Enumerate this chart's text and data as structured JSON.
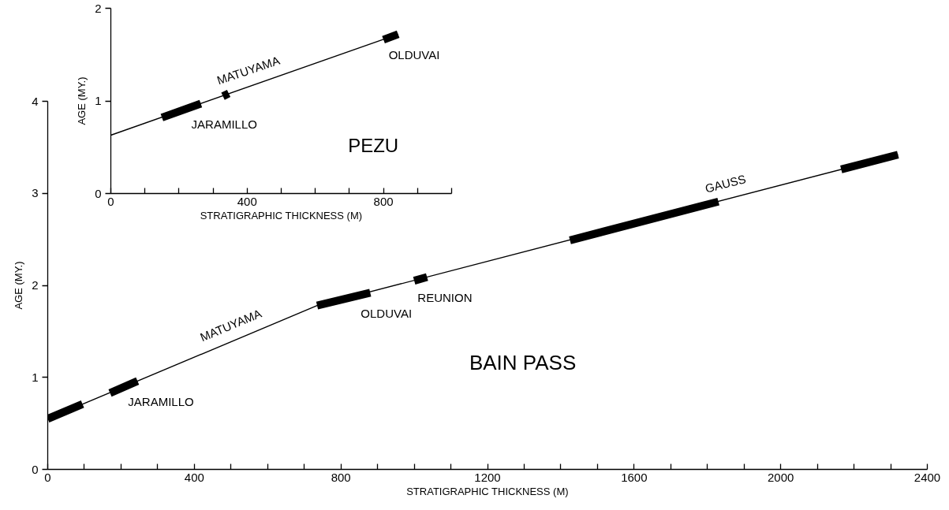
{
  "chart_data": [
    {
      "type": "line",
      "title": "BAIN PASS",
      "xlabel": "STRATIGRAPHIC THICKNESS (M)",
      "ylabel": "AGE (MY.)",
      "xlim": [
        0,
        2400
      ],
      "ylim": [
        0,
        4
      ],
      "xticks": [
        0,
        {
          "value": 100,
          "label": null
        },
        {
          "value": 200,
          "label": null
        },
        {
          "value": 300,
          "label": null
        },
        400,
        {
          "value": 500,
          "label": null
        },
        {
          "value": 600,
          "label": null
        },
        {
          "value": 700,
          "label": null
        },
        800,
        {
          "value": 900,
          "label": null
        },
        {
          "value": 1000,
          "label": null
        },
        {
          "value": 1100,
          "label": null
        },
        1200,
        {
          "value": 1300,
          "label": null
        },
        {
          "value": 1400,
          "label": null
        },
        {
          "value": 1500,
          "label": null
        },
        1600,
        {
          "value": 1700,
          "label": null
        },
        {
          "value": 1800,
          "label": null
        },
        {
          "value": 1900,
          "label": null
        },
        2000,
        {
          "value": 2100,
          "label": null
        },
        {
          "value": 2200,
          "label": null
        },
        {
          "value": 2300,
          "label": null
        },
        2400
      ],
      "yticks": [
        0,
        1,
        2,
        3,
        4
      ],
      "series": [
        {
          "color": "#000000",
          "x": [
            0,
            735,
            2320
          ],
          "values": [
            0.55,
            1.78,
            3.42
          ]
        },
        {
          "color": "#000000",
          "x": [
            0,
            95,
            null,
            170,
            245,
            null,
            735,
            880,
            null,
            1000,
            1035,
            null,
            1425,
            1830,
            null,
            2165,
            2320
          ],
          "values": [
            0.55,
            0.71,
            null,
            0.83,
            0.96,
            null,
            1.78,
            1.92,
            null,
            2.05,
            2.09,
            null,
            2.49,
            2.91,
            null,
            3.26,
            3.42
          ]
        }
      ],
      "annotations": [
        {
          "text": "MATUYAMA",
          "x": 516,
          "y": 1.41
        },
        {
          "text": "JARAMILLO",
          "x": 245,
          "y": 0.96
        },
        {
          "text": "OLDUVAI",
          "x": 880,
          "y": 1.92
        },
        {
          "text": "REUNION",
          "x": 1035,
          "y": 2.09
        },
        {
          "text": "GAUSS",
          "x": 1860,
          "y": 2.94
        }
      ]
    },
    {
      "type": "line",
      "title": "PEZU",
      "xlabel": "STRATIGRAPHIC THICKNESS (M)",
      "ylabel": "AGE (MY.)",
      "xlim": [
        0,
        1000
      ],
      "ylim": [
        0,
        2
      ],
      "xticks": [
        0,
        {
          "value": 100,
          "label": null
        },
        {
          "value": 200,
          "label": null
        },
        {
          "value": 300,
          "label": null
        },
        400,
        {
          "value": 500,
          "label": null
        },
        {
          "value": 600,
          "label": null
        },
        {
          "value": 700,
          "label": null
        },
        800,
        {
          "value": 900,
          "label": null
        },
        {
          "value": 1000,
          "label": null
        }
      ],
      "yticks": [
        0,
        1,
        2
      ],
      "series": [
        {
          "color": "#000000",
          "x": [
            0,
            843
          ],
          "values": [
            0.63,
            1.72
          ]
        },
        {
          "color": "#000000",
          "x": [
            150,
            264,
            null,
            329,
            346,
            null,
            800,
            843
          ],
          "values": [
            0.82,
            0.97,
            null,
            1.05,
            1.08,
            null,
            1.66,
            1.72
          ]
        }
      ],
      "annotations": [
        {
          "text": "MATUYAMA",
          "x": 418,
          "y": 1.17
        },
        {
          "text": "JARAMILLO",
          "x": 264,
          "y": 0.97
        },
        {
          "text": "OLDUVAI",
          "x": 843,
          "y": 1.72
        }
      ]
    }
  ]
}
